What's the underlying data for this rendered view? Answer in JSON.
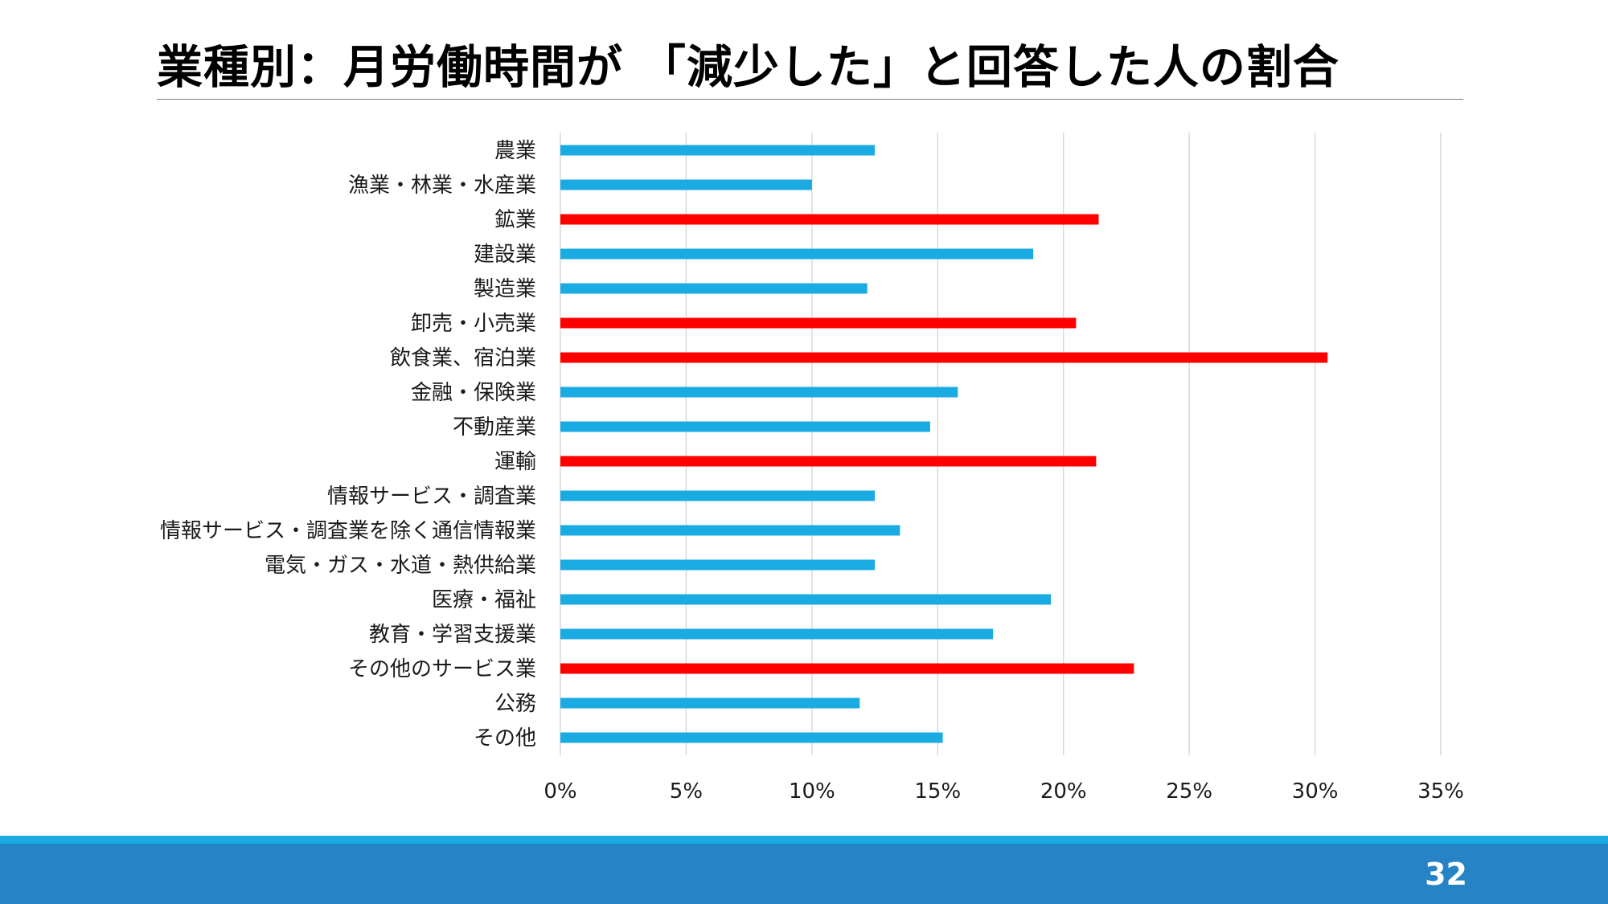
{
  "slide": {
    "title": "業種別：月労働時間が 「減少した」と回答した人の割合",
    "page_number": "32"
  },
  "colors": {
    "normal_bar": "#1aabe3",
    "highlight_bar": "#ff0000",
    "gridline": "#d9d9d9",
    "footer_stripe": "#1aabe3",
    "footer_band": "#2583c6"
  },
  "chart_data": {
    "type": "bar",
    "orientation": "horizontal",
    "title": "",
    "xlabel": "",
    "ylabel": "",
    "xlim": [
      0,
      35
    ],
    "x_ticks": [
      0,
      5,
      10,
      15,
      20,
      25,
      30,
      35
    ],
    "x_tick_labels": [
      "0%",
      "5%",
      "10%",
      "15%",
      "20%",
      "25%",
      "30%",
      "35%"
    ],
    "grid": "vertical",
    "legend": "none",
    "categories": [
      "農業",
      "漁業・林業・水産業",
      "鉱業",
      "建設業",
      "製造業",
      "卸売・小売業",
      "飲食業、宿泊業",
      "金融・保険業",
      "不動産業",
      "運輸",
      "情報サービス・調査業",
      "情報サービス・調査業を除く通信情報業",
      "電気・ガス・水道・熱供給業",
      "医療・福祉",
      "教育・学習支援業",
      "その他のサービス業",
      "公務",
      "その他"
    ],
    "values": [
      12.5,
      10.0,
      21.4,
      18.8,
      12.2,
      20.5,
      30.5,
      15.8,
      14.7,
      21.3,
      12.5,
      13.5,
      12.5,
      19.5,
      17.2,
      22.8,
      11.9,
      15.2
    ],
    "highlighted": [
      false,
      false,
      true,
      false,
      false,
      true,
      true,
      false,
      false,
      true,
      false,
      false,
      false,
      false,
      false,
      true,
      false,
      false
    ]
  }
}
